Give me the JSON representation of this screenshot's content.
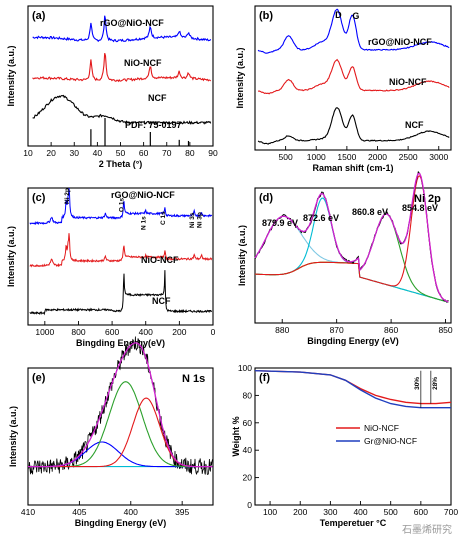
{
  "watermark": "石墨烯研究",
  "chart_data": [
    {
      "panel": "(a)",
      "type": "line",
      "xlabel": "2 Theta (°)",
      "ylabel": "Intensity (a.u.)",
      "xlim": [
        10,
        90
      ],
      "xticks": [
        10,
        20,
        30,
        40,
        50,
        60,
        70,
        80,
        90
      ],
      "series": [
        {
          "name": "rGO@NiO-NCF",
          "color": "#0000ff",
          "offset": 3.2,
          "peaks": [
            [
              37.2,
              0.55
            ],
            [
              43.3,
              0.8
            ],
            [
              62.9,
              0.35
            ],
            [
              75.4,
              0.2
            ],
            [
              79.4,
              0.18
            ]
          ],
          "base": 0.2
        },
        {
          "name": "NiO-NCF",
          "color": "#e31a1c",
          "offset": 2.0,
          "peaks": [
            [
              37.2,
              0.6
            ],
            [
              43.3,
              0.9
            ],
            [
              62.9,
              0.4
            ],
            [
              75.4,
              0.2
            ],
            [
              79.4,
              0.18
            ]
          ],
          "base": 0.15
        },
        {
          "name": "NCF",
          "color": "#000000",
          "offset": 0.7,
          "peaks": [
            [
              24,
              0.8
            ]
          ],
          "base": 0.1
        }
      ],
      "reference": {
        "label": "PDF: 75-0197",
        "x": [
          37.2,
          43.3,
          62.9,
          75.4,
          79.4
        ],
        "h": [
          0.6,
          1.0,
          0.5,
          0.22,
          0.18
        ]
      }
    },
    {
      "panel": "(b)",
      "type": "line",
      "xlabel": "Raman shift (cm-1)",
      "ylabel": "Intensity (a.u.)",
      "xlim": [
        0,
        3200
      ],
      "xticks": [
        500,
        1000,
        1500,
        2000,
        2500,
        3000
      ],
      "band_labels": [
        "D",
        "G"
      ],
      "series": [
        {
          "name": "rGO@NiO-NCF",
          "color": "#0000ff",
          "offset": 3.2
        },
        {
          "name": "NiO-NCF",
          "color": "#e31a1c",
          "offset": 1.9
        },
        {
          "name": "NCF",
          "color": "#000000",
          "offset": 0.3
        }
      ]
    },
    {
      "panel": "(c)",
      "type": "line",
      "xlabel": "Bingding Energy(eV)",
      "ylabel": "Intensity (a.u.)",
      "xlim": [
        1100,
        0
      ],
      "xticks": [
        1000,
        800,
        600,
        400,
        200,
        0
      ],
      "peak_labels": [
        "Ni 2p",
        "O 1s",
        "N 1s",
        "C 1s",
        "Ni 3s",
        "Ni 3p"
      ],
      "series": [
        {
          "name": "rGO@NiO-NCF",
          "color": "#0000ff",
          "offset": 3.2
        },
        {
          "name": "NiO-NCF",
          "color": "#e31a1c",
          "offset": 1.8
        },
        {
          "name": "NCF",
          "color": "#000000",
          "offset": 0.4
        }
      ]
    },
    {
      "panel": "(d)",
      "type": "line",
      "title": "Ni 2p",
      "xlabel": "Bingding Energy (eV)",
      "ylabel": "Intensity (a.u.)",
      "xlim": [
        885,
        849
      ],
      "xticks": [
        880,
        870,
        860,
        850
      ],
      "peaks": [
        {
          "label": "879.9 eV",
          "x": 879.9,
          "h": 0.45,
          "w": 3.2,
          "color": "#7ec8e3"
        },
        {
          "label": "872.6 eV",
          "x": 872.6,
          "h": 0.5,
          "w": 1.6,
          "color": "#00bcd4"
        },
        {
          "label": "860.8 eV",
          "x": 860.8,
          "h": 0.55,
          "w": 2.3,
          "color": "#2ca02c"
        },
        {
          "label": "854.8 eV",
          "x": 854.8,
          "h": 0.92,
          "w": 1.5,
          "color": "#e31a1c"
        }
      ],
      "background_color": "#e8e800",
      "fit_color": "#d020d0"
    },
    {
      "panel": "(e)",
      "type": "line",
      "title": "N 1s",
      "xlabel": "Bingding Energy (eV)",
      "ylabel": "Intensity (a.u.)",
      "xlim": [
        410,
        392
      ],
      "xticks": [
        410,
        405,
        400,
        395
      ],
      "components": [
        {
          "x": 402.8,
          "h": 0.18,
          "w": 1.6,
          "color": "#0000ff"
        },
        {
          "x": 400.5,
          "h": 0.62,
          "w": 1.6,
          "color": "#2ca02c"
        },
        {
          "x": 398.5,
          "h": 0.5,
          "w": 1.3,
          "color": "#e31a1c"
        }
      ],
      "fit_color": "#d020d0",
      "baseline_color": "#00bcd4"
    },
    {
      "panel": "(f)",
      "type": "line",
      "xlabel": "Temperetuer °C",
      "ylabel": "Weight %",
      "xlim": [
        50,
        700
      ],
      "ylim": [
        0,
        100
      ],
      "xticks": [
        100,
        200,
        300,
        400,
        500,
        600,
        700
      ],
      "yticks": [
        0,
        20,
        40,
        60,
        80,
        100
      ],
      "series": [
        {
          "name": "NiO-NCF",
          "color": "#e31a1c",
          "x": [
            50,
            200,
            300,
            350,
            400,
            450,
            500,
            550,
            600,
            650,
            700
          ],
          "y": [
            98,
            97,
            95,
            91,
            85,
            80,
            77,
            75,
            74,
            74,
            75
          ]
        },
        {
          "name": "Gr@NiO-NCF",
          "color": "#1f3fbf",
          "x": [
            50,
            200,
            300,
            350,
            400,
            450,
            500,
            550,
            600,
            650,
            700
          ],
          "y": [
            98,
            97,
            95,
            91,
            84,
            78,
            74,
            72,
            71,
            71,
            71
          ]
        }
      ],
      "annotations": [
        "30%",
        "28%"
      ]
    }
  ]
}
